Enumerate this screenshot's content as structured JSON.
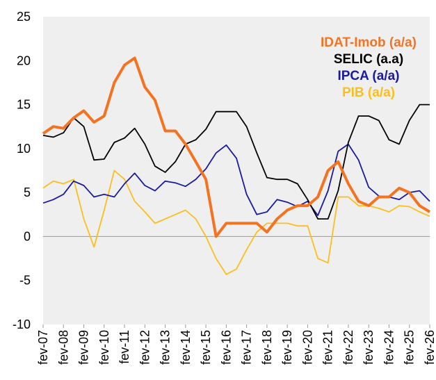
{
  "chart_data": {
    "type": "line",
    "categories": [
      "fev-07",
      null,
      "fev-08",
      null,
      "fev-09",
      null,
      "fev-10",
      null,
      "fev-11",
      null,
      "fev-12",
      null,
      "fev-13",
      null,
      "fev-14",
      null,
      "fev-15",
      null,
      "fev-16",
      null,
      "fev-17",
      null,
      "fev-18",
      null,
      "fev-19",
      null,
      "fev-20",
      null,
      "fev-21",
      null,
      "fev-22",
      null,
      "fev-23",
      null,
      "fev-24",
      null,
      "fev-25",
      null,
      "fev-26"
    ],
    "ylim": [
      -10,
      25
    ],
    "yticks": [
      -10,
      -5,
      0,
      5,
      10,
      15,
      20,
      25
    ],
    "series": [
      {
        "name": "IDAT-Imob (a/a)",
        "color": "#f47321",
        "values": [
          11.7,
          12.5,
          12.3,
          13.5,
          14.3,
          13,
          13.7,
          17.5,
          19.5,
          20.3,
          17,
          15.5,
          12,
          12,
          10.5,
          8.5,
          6.5,
          0,
          1.5,
          1.5,
          1.5,
          1.5,
          0.5,
          2,
          3,
          3.5,
          3.5,
          4.5,
          7.5,
          8.5,
          6,
          4,
          3.5,
          4.5,
          4.5,
          5.5,
          5,
          3.5,
          2.8
        ]
      },
      {
        "name": "SELIC (a.a)",
        "color": "#000000",
        "values": [
          11.5,
          11.3,
          11.8,
          13.5,
          12.5,
          8.7,
          8.8,
          10.7,
          11.2,
          12.3,
          10.5,
          8,
          7.3,
          8.5,
          10.5,
          11,
          12.2,
          14.2,
          14.2,
          14.2,
          12.5,
          9.5,
          6.7,
          6.5,
          6.5,
          6,
          4.2,
          2,
          2,
          5.2,
          10.7,
          13.7,
          13.7,
          13.2,
          11,
          10.5,
          13.2,
          15,
          15
        ]
      },
      {
        "name": "IPCA (a/a)",
        "color": "#1a1aa0",
        "values": [
          3.8,
          4.2,
          4.8,
          6.3,
          5.8,
          4.5,
          4.8,
          4.5,
          6,
          7.2,
          5.8,
          5.2,
          6.3,
          6.1,
          5.7,
          6.5,
          7.7,
          9.5,
          10.4,
          8.9,
          4.8,
          2.5,
          2.8,
          4.2,
          3.9,
          3.4,
          4,
          2.4,
          5.2,
          9.7,
          10.5,
          8.7,
          5.6,
          4.6,
          4.5,
          4.2,
          5,
          5.2,
          4
        ]
      },
      {
        "name": "PIB (a/a)",
        "color": "#fbbf1c",
        "values": [
          5.5,
          6.3,
          6,
          6.5,
          2,
          -1.2,
          3,
          7.5,
          6.5,
          4,
          2.8,
          1.5,
          2,
          2.5,
          3,
          2,
          0,
          -2.5,
          -4.3,
          -3.7,
          -1.5,
          0.5,
          1.5,
          1.5,
          1.5,
          1.2,
          1.2,
          -2.5,
          -3,
          4.5,
          4.5,
          3.5,
          3.5,
          3.2,
          2.8,
          3.5,
          3.4,
          2.8,
          2.3
        ]
      }
    ]
  }
}
